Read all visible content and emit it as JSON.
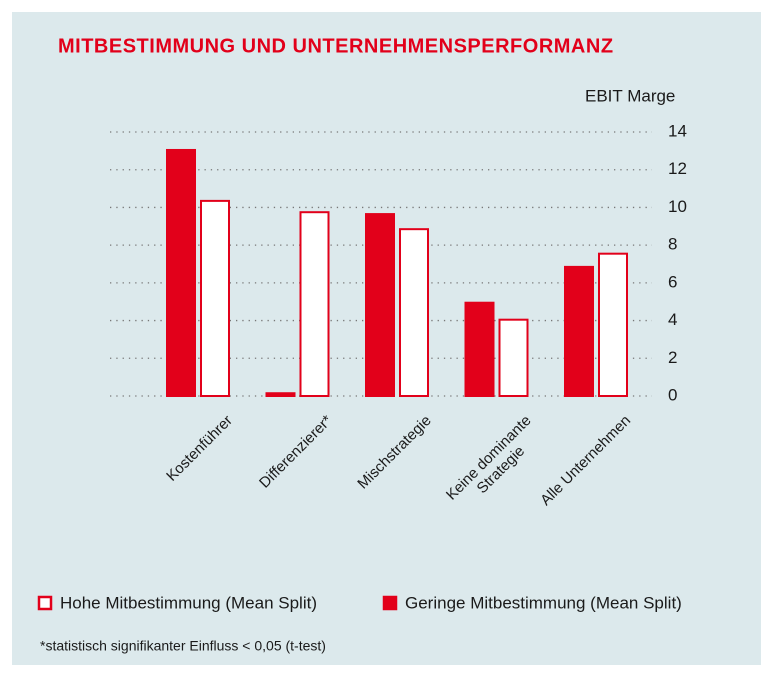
{
  "chart_data": {
    "type": "bar",
    "title": "MITBESTIMMUNG UND UNTERNEHMENSPERFORMANZ",
    "y_axis_label": "EBIT Marge",
    "categories": [
      "Kostenführer",
      "Differenzierer*",
      "Mischstrategie",
      "Keine dominante\nStrategie",
      "Alle Unternehmen"
    ],
    "series": [
      {
        "name": "Hohe Mitbestimmung (Mean Split)",
        "color": "#e2001a",
        "fill": "#ffffff",
        "values": [
          10.4,
          9.8,
          8.9,
          4.1,
          7.6
        ]
      },
      {
        "name": "Geringe Mitbestimmung (Mean Split)",
        "color": "#e2001a",
        "fill": "#e2001a",
        "values": [
          13.1,
          0.2,
          9.7,
          5.0,
          6.9
        ]
      }
    ],
    "ylim": [
      0,
      14
    ],
    "yticks": [
      0,
      2,
      4,
      6,
      8,
      10,
      12,
      14
    ],
    "grid": true,
    "footnote": "*statistisch signifikanter Einfluss < 0,05 (t-test)"
  }
}
